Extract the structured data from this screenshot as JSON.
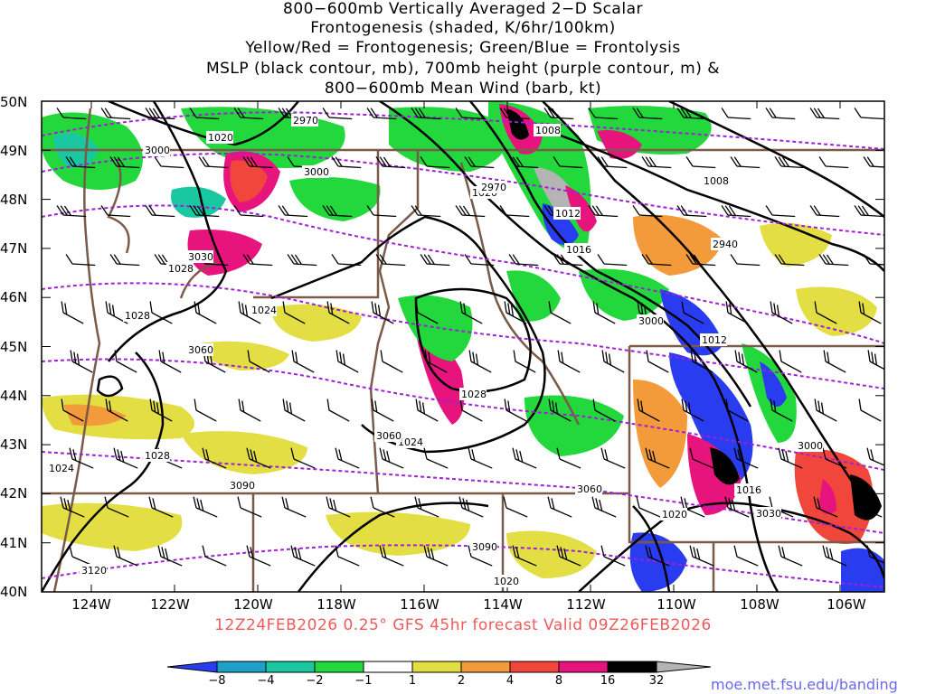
{
  "titles": [
    "800−600mb Vertically Averaged 2−D Scalar",
    "Frontogenesis (shaded, K/6hr/100km)",
    "Yellow/Red = Frontogenesis;  Green/Blue = Frontolysis",
    "MSLP (black contour, mb), 700mb height (purple contour, m) &",
    "800−600mb Mean Wind (barb, kt)"
  ],
  "lat_labels": [
    "50N",
    "49N",
    "48N",
    "47N",
    "46N",
    "45N",
    "44N",
    "43N",
    "42N",
    "41N",
    "40N"
  ],
  "lon_labels": [
    "124W",
    "122W",
    "120W",
    "118W",
    "116W",
    "114W",
    "112W",
    "110W",
    "108W",
    "106W"
  ],
  "valid_line": "12Z24FEB2026 0.25° GFS 45hr forecast Valid 09Z26FEB2026",
  "colorbar": {
    "labels": [
      "−8",
      "−4",
      "−2",
      "−1",
      "1",
      "2",
      "4",
      "8",
      "16",
      "32"
    ],
    "colors": [
      "#2a3cf0",
      "#1ea0c8",
      "#19c8a0",
      "#22d83c",
      "#ffffff",
      "#e2de44",
      "#f39a3a",
      "#f0463c",
      "#e8147e",
      "#000000",
      "#b4b4b4"
    ]
  },
  "mslp_labels": [
    "1008",
    "1008",
    "1012",
    "1016",
    "1020",
    "1020",
    "1024",
    "1024",
    "1028",
    "1028",
    "1028",
    "1028",
    "1012",
    "1016",
    "1020",
    "1020",
    "1024"
  ],
  "height_labels": [
    "2970",
    "3000",
    "3000",
    "3030",
    "3060",
    "3060",
    "3090",
    "3090",
    "3120",
    "2940",
    "2970",
    "3000",
    "3000",
    "3030",
    "3060"
  ],
  "fronto_classes": [
    "frontolysis-strong",
    "frontolysis",
    "weak",
    "frontogenesis",
    "frontogenesis-strong"
  ],
  "credit": "moe.met.fsu.edu/banding"
}
